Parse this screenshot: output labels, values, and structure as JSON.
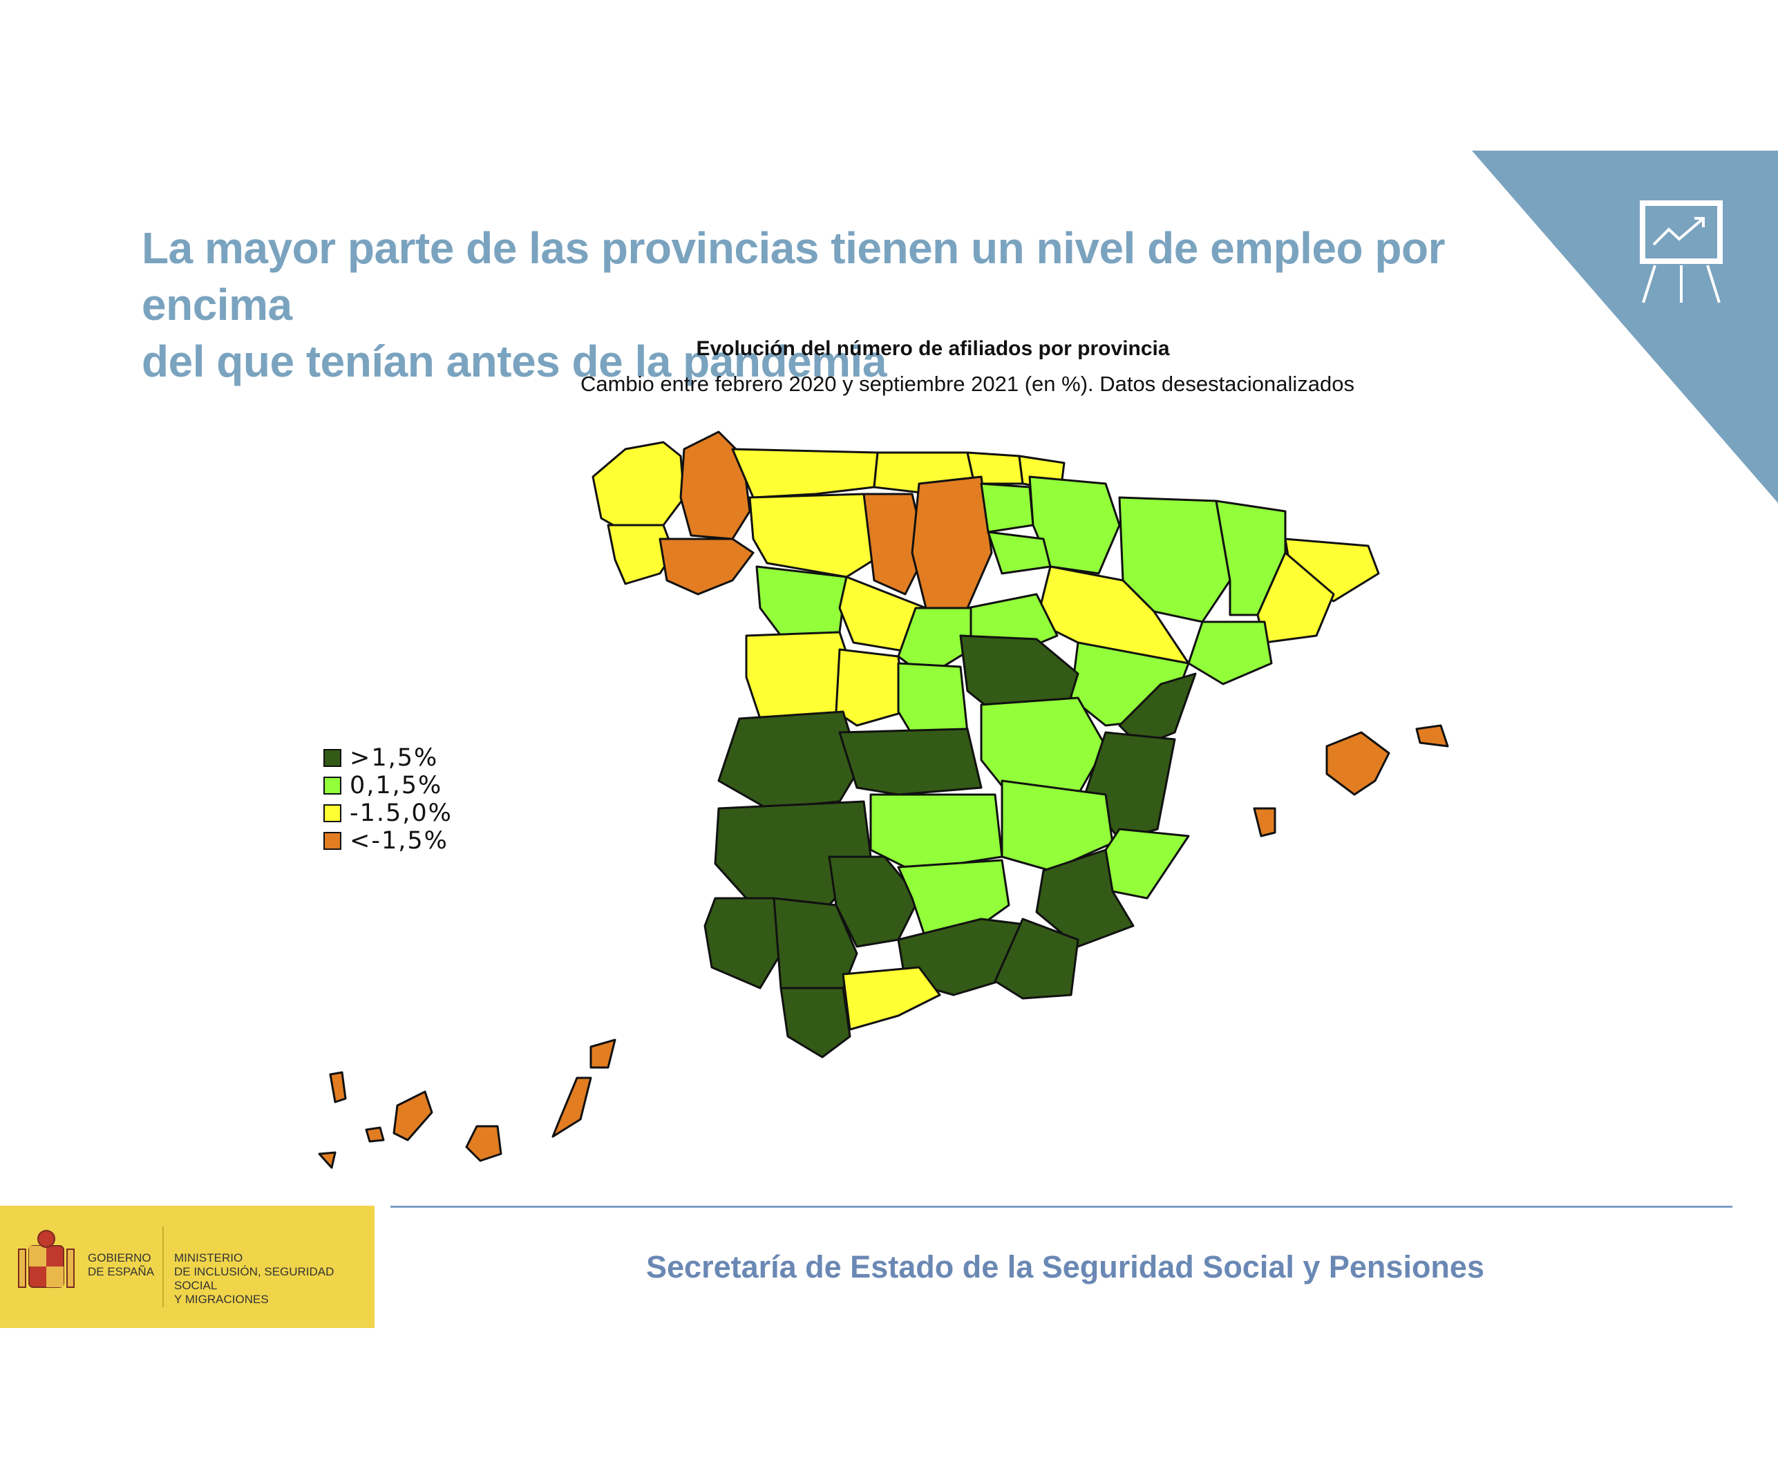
{
  "headline": {
    "line1": "La mayor parte de las provincias tienen un nivel de empleo por encima",
    "line2": "del que tenían antes de la pandemia"
  },
  "map": {
    "title": "Evolución del número de afiliados por provincia",
    "subtitle": "Cambio entre febrero 2020 y septiembre 2021 (en %). Datos desestacionalizados",
    "legend": [
      {
        "label": ">1,5%",
        "color": "#335a16"
      },
      {
        "label": "0,1,5%",
        "color": "#92ff3a"
      },
      {
        "label": "-1.5,0%",
        "color": "#ffff33"
      },
      {
        "label": "<-1,5%",
        "color": "#e27d22"
      }
    ]
  },
  "footer": {
    "gov_left": [
      "GOBIERNO",
      "DE ESPAÑA"
    ],
    "gov_right": [
      "MINISTERIO",
      "DE INCLUSIÓN, SEGURIDAD SOCIAL",
      "Y MIGRACIONES"
    ],
    "secretariat": "Secretaría de Estado de la Seguridad Social y Pensiones"
  },
  "colors": {
    "accent_blue": "#7aa3bf",
    "footer_blue": "#6a88b4",
    "gov_yellow": "#f0d54a"
  },
  "icons": [
    "presentation-chart-icon",
    "coat-of-arms-icon"
  ]
}
